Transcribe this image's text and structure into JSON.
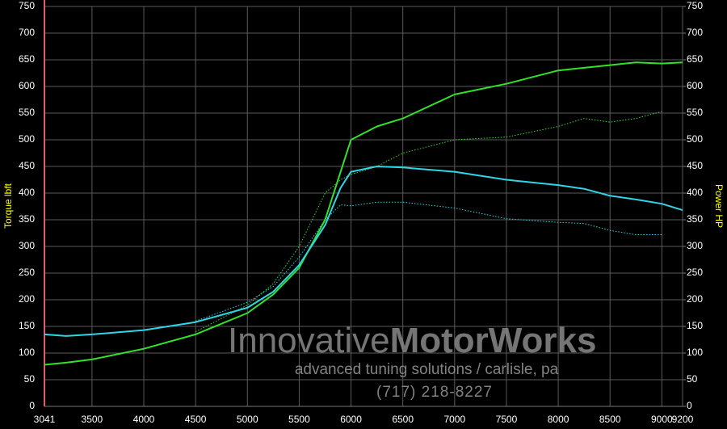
{
  "chart_data": {
    "type": "line",
    "y_label": "Torque lbft",
    "y2_label": "Power HP",
    "x": [
      3041,
      3250,
      3500,
      4000,
      4500,
      5000,
      5250,
      5500,
      5750,
      5900,
      6000,
      6250,
      6500,
      7000,
      7500,
      8000,
      8250,
      8500,
      8750,
      9000,
      9200
    ],
    "series": [
      {
        "color": "#33e02a",
        "style": "dotted",
        "axis": "y2",
        "values": [
          null,
          null,
          null,
          null,
          140,
          190,
          230,
          300,
          400,
          425,
          435,
          450,
          475,
          500,
          505,
          525,
          540,
          533,
          540,
          553,
          null
        ]
      },
      {
        "color": "#2fd6e6",
        "style": "dotted",
        "values": [
          null,
          null,
          null,
          null,
          160,
          195,
          225,
          280,
          350,
          378,
          376,
          383,
          383,
          372,
          352,
          345,
          343,
          330,
          322,
          322,
          null
        ]
      },
      {
        "color": "#33e02a",
        "style": "solid",
        "axis": "y2",
        "values": [
          78,
          82,
          88,
          108,
          135,
          175,
          210,
          260,
          350,
          440,
          500,
          525,
          540,
          585,
          605,
          630,
          635,
          640,
          645,
          643,
          645
        ]
      },
      {
        "color": "#2fd6e6",
        "style": "solid",
        "values": [
          135,
          132,
          135,
          143,
          158,
          185,
          215,
          265,
          340,
          410,
          440,
          450,
          448,
          440,
          425,
          415,
          408,
          395,
          388,
          380,
          368
        ]
      }
    ],
    "xlim": [
      3041,
      9200
    ],
    "xticks": [
      3041,
      3500,
      4000,
      4500,
      5000,
      5500,
      6000,
      6500,
      7000,
      7500,
      8000,
      8500,
      9000,
      9200
    ],
    "ylim": [
      0,
      750
    ],
    "yticks": [
      0,
      50,
      100,
      150,
      200,
      250,
      300,
      350,
      400,
      450,
      500,
      550,
      600,
      650,
      700,
      750
    ],
    "y2lim": [
      0,
      750
    ],
    "y2ticks": [
      0,
      50,
      100,
      150,
      200,
      250,
      300,
      350,
      400,
      450,
      500,
      550,
      600,
      650,
      700,
      750
    ],
    "grid": true,
    "axis_label_color": "#ffff00"
  },
  "watermark": {
    "brand_light": "Innovative",
    "brand_bold": "MotorWorks",
    "tagline": "advanced tuning solutions / carlisle, pa",
    "phone": "(717) 218-8227"
  }
}
